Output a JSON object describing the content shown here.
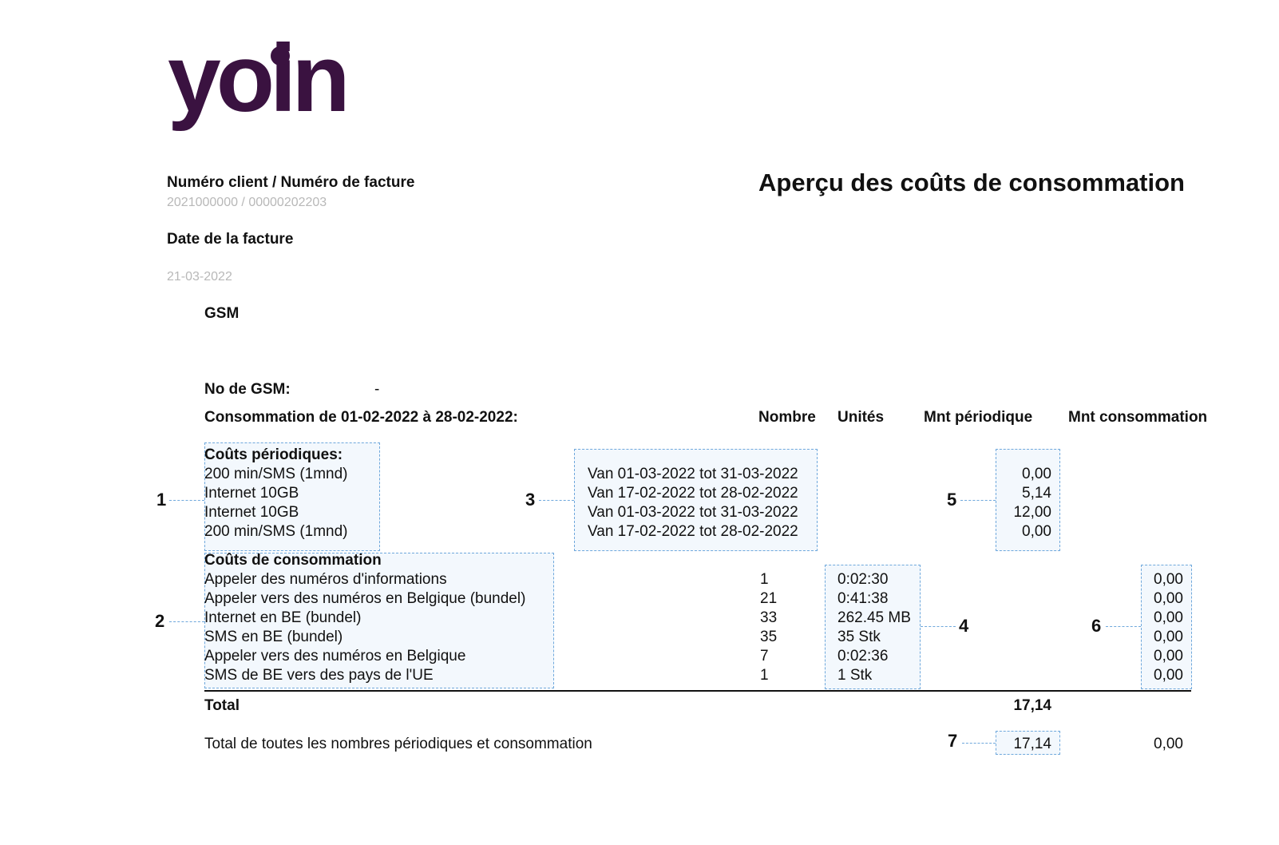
{
  "brand": {
    "logo_text": "yoin",
    "color": "#3a1240"
  },
  "header": {
    "client_invoice_label": "Numéro client / Numéro de facture",
    "client_invoice_value": "2021000000 / 00000202203",
    "date_label": "Date de la facture",
    "date_value": "21-03-2022",
    "title": "Aperçu des coûts de consommation"
  },
  "section": {
    "heading": "GSM",
    "gsm_no_label": "No de GSM:",
    "gsm_no_value": "-",
    "period_label": "Consommation de 01-02-2022 à 28-02-2022:"
  },
  "columns": {
    "nombre": "Nombre",
    "unites": "Unités",
    "mnt_periodique": "Mnt périodique",
    "mnt_consommation": "Mnt consommation"
  },
  "periodic": {
    "heading": "Coûts périodiques:",
    "rows": [
      {
        "label": "200 min/SMS (1mnd)",
        "period": "Van 01-03-2022 tot 31-03-2022",
        "amount": "0,00"
      },
      {
        "label": "Internet 10GB",
        "period": "Van 17-02-2022 tot 28-02-2022",
        "amount": "5,14"
      },
      {
        "label": "Internet 10GB",
        "period": "Van 01-03-2022 tot 31-03-2022",
        "amount": "12,00"
      },
      {
        "label": "200 min/SMS (1mnd)",
        "period": "Van 17-02-2022 tot 28-02-2022",
        "amount": "0,00"
      }
    ]
  },
  "consumption": {
    "heading": "Coûts de consommation",
    "rows": [
      {
        "label": "Appeler des numéros d'informations",
        "count": "1",
        "units": "0:02:30",
        "amount": "0,00"
      },
      {
        "label": "Appeler vers des numéros en Belgique (bundel)",
        "count": "21",
        "units": "0:41:38",
        "amount": "0,00"
      },
      {
        "label": "Internet en BE (bundel)",
        "count": "33",
        "units": "262.45 MB",
        "amount": "0,00"
      },
      {
        "label": "SMS en BE (bundel)",
        "count": "35",
        "units": "35 Stk",
        "amount": "0,00"
      },
      {
        "label": "Appeler vers des numéros en Belgique",
        "count": "7",
        "units": "0:02:36",
        "amount": "0,00"
      },
      {
        "label": "SMS de BE vers des pays de l'UE",
        "count": "1",
        "units": "1 Stk",
        "amount": "0,00"
      }
    ]
  },
  "totals": {
    "total_label": "Total",
    "total_periodic": "17,14",
    "grand_label": "Total de toutes les nombres périodiques et consommation",
    "grand_periodic": "17,14",
    "grand_consumption": "0,00"
  },
  "markers": [
    "1",
    "2",
    "3",
    "4",
    "5",
    "6",
    "7"
  ]
}
